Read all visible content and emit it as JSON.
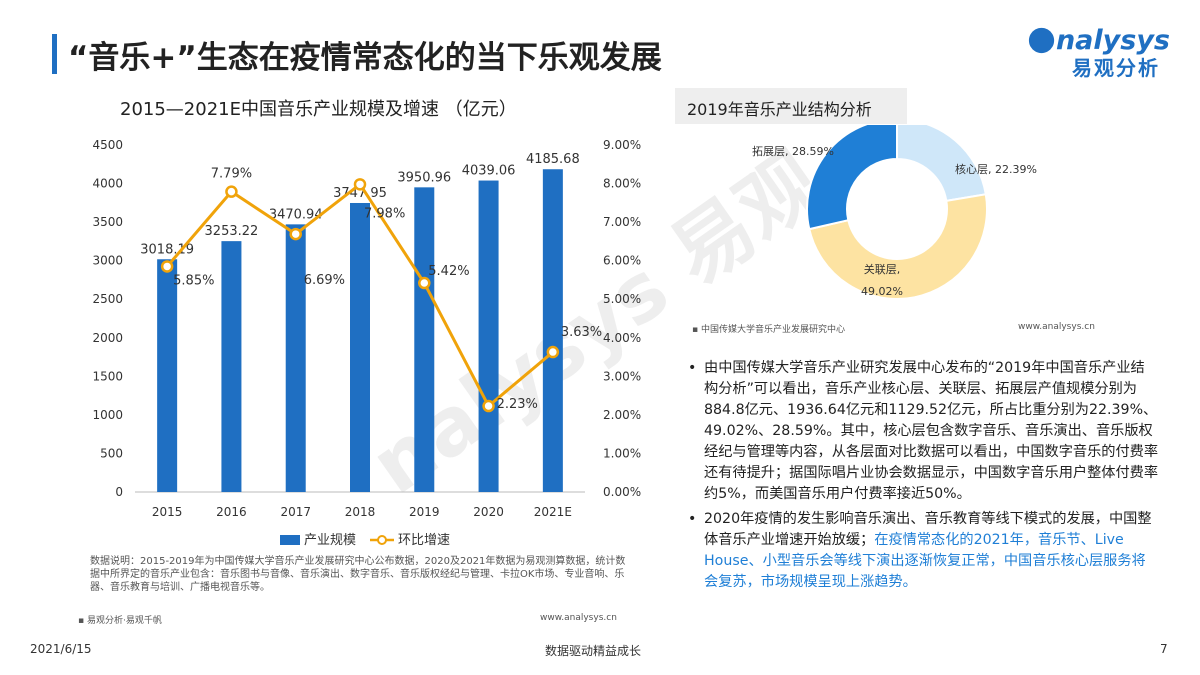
{
  "header": {
    "title": "“音乐+”生态在疫情常态化的当下乐观发展",
    "logo_en": "nalysys",
    "logo_cn": "易观分析"
  },
  "chart_data": [
    {
      "type": "bar",
      "title": "2015—2021E中国音乐产业规模及增速  （亿元）",
      "categories": [
        "2015",
        "2016",
        "2017",
        "2018",
        "2019",
        "2020",
        "2021E"
      ],
      "series": [
        {
          "name": "产业规模",
          "type": "bar",
          "axis": "left",
          "values": [
            3018.19,
            3253.22,
            3470.94,
            3747.95,
            3950.96,
            4039.06,
            4185.68
          ],
          "labels": [
            "3018.19",
            "3253.22",
            "3470.94",
            "3747.95",
            "3950.96",
            "4039.06",
            "4185.68"
          ]
        },
        {
          "name": "环比增速",
          "type": "line",
          "axis": "right",
          "values": [
            5.85,
            7.79,
            6.69,
            7.98,
            5.42,
            2.23,
            3.63
          ],
          "labels": [
            "5.85%",
            "7.79%",
            "6.69%",
            "7.98%",
            "5.42%",
            "2.23%",
            "3.63%"
          ]
        }
      ],
      "ylim": [
        0,
        4500
      ],
      "y_ticks": [
        "0",
        "500",
        "1000",
        "1500",
        "2000",
        "2500",
        "3000",
        "3500",
        "4000",
        "4500"
      ],
      "y2lim": [
        0,
        9
      ],
      "y2_ticks": [
        "0.00%",
        "1.00%",
        "2.00%",
        "3.00%",
        "4.00%",
        "5.00%",
        "6.00%",
        "7.00%",
        "8.00%",
        "9.00%"
      ],
      "legend": "bottom",
      "colors": {
        "bar": "#1f6fc2",
        "line": "#f0a30a"
      }
    },
    {
      "type": "pie",
      "title": "2019年音乐产业结构分析",
      "slices": [
        {
          "name": "核心层",
          "value": 22.39,
          "label": "核心层, 22.39%",
          "color": "#cfe7f9"
        },
        {
          "name": "关联层",
          "value": 49.02,
          "label_name": "关联层,",
          "label_value": "49.02%",
          "color": "#fde3a2"
        },
        {
          "name": "拓展层",
          "value": 28.59,
          "label": "拓展层, 28.59%",
          "color": "#1f7fd6"
        }
      ],
      "donut": true
    }
  ],
  "notes": {
    "left": "数据说明：2015-2019年为中国传媒大学音乐产业发展研究中心公布数据，2020及2021年数据为易观测算数据，统计数据中所界定的音乐产业包含：音乐图书与音像、音乐演出、数字音乐、音乐版权经纪与管理、卡拉OK市场、专业音响、乐器、音乐教育与培训、广播电视音乐等。",
    "left_source": "易观分析·易观千帆",
    "left_url": "www.analysys.cn",
    "right_source": "中国传媒大学音乐产业发展研究中心",
    "right_url": "www.analysys.cn"
  },
  "text": {
    "p1": "由中国传媒大学音乐产业研究发展中心发布的“2019年中国音乐产业结构分析”可以看出，音乐产业核心层、关联层、拓展层产值规模分别为884.8亿元、1936.64亿元和1129.52亿元，所占比重分别为22.39%、49.02%、28.59%。其中，核心层包含数字音乐、音乐演出、音乐版权经纪与管理等内容，从各层面对比数据可以看出，中国数字音乐的付费率还有待提升；据国际唱片业协会数据显示，中国数字音乐用户整体付费率约5%，而美国音乐用户付费率接近50%。",
    "p2_plain": "2020年疫情的发生影响音乐演出、音乐教育等线下模式的发展，中国整体音乐产业增速开始放缓；",
    "p2_highlight": "在疫情常态化的2021年，音乐节、Live House、小型音乐会等线下演出逐渐恢复正常，中国音乐核心层服务将会复苏，市场规模呈现上涨趋势。"
  },
  "footer": {
    "date": "2021/6/15",
    "slogan": "数据驱动精益成长",
    "page": "7"
  }
}
